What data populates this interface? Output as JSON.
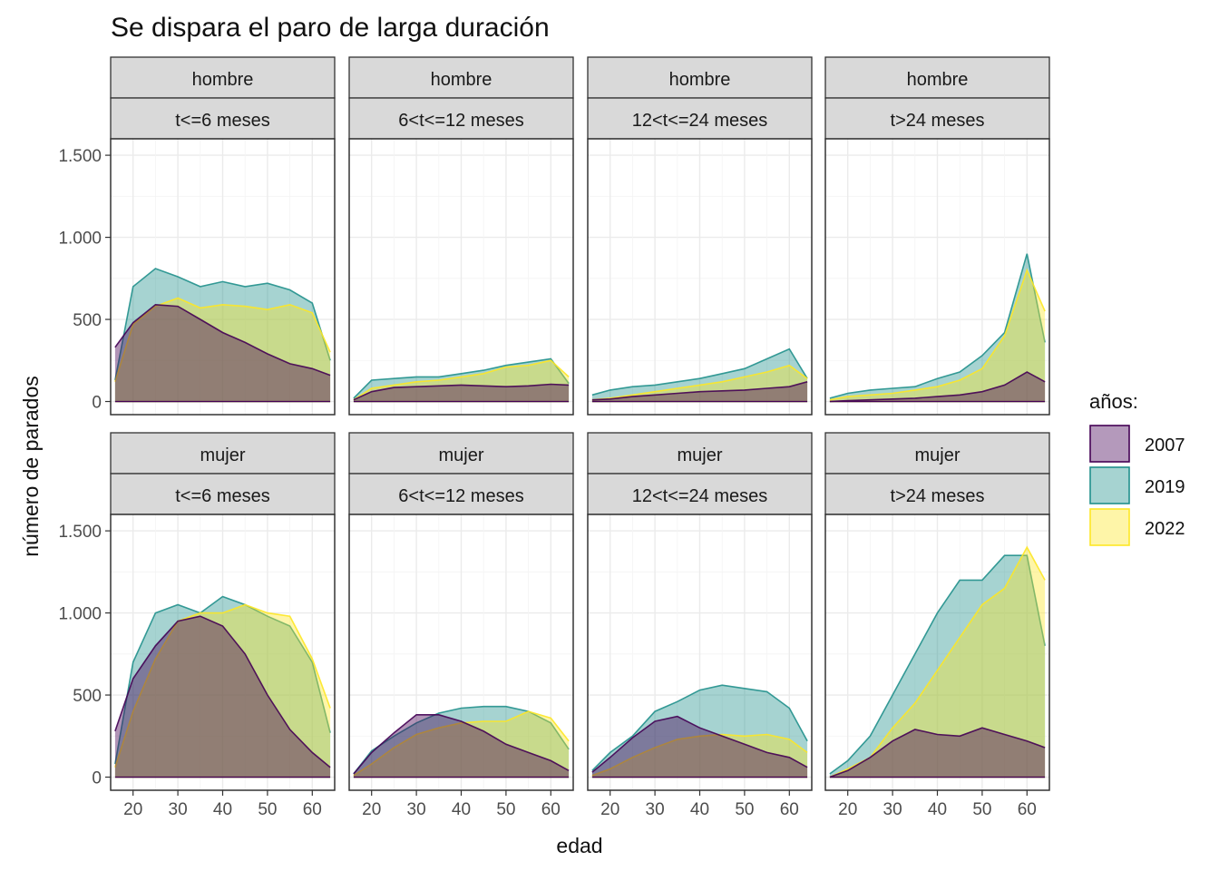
{
  "chart_data": {
    "type": "area",
    "title": "Se dispara el paro de larga duración",
    "xlabel": "edad",
    "ylabel": "número de parados",
    "xlim": [
      15,
      65
    ],
    "ylim": [
      0,
      1500
    ],
    "x_ticks": [
      20,
      30,
      40,
      50,
      60
    ],
    "y_ticks": [
      0,
      500,
      1000,
      1500
    ],
    "y_tick_labels": [
      "0",
      "500",
      "1.000",
      "1.500"
    ],
    "grid": true,
    "legend": {
      "title": "años:",
      "placement": "right",
      "entries": [
        {
          "label": "2007",
          "fill": "#440154",
          "line": "#440154"
        },
        {
          "label": "2019",
          "fill": "#21908C",
          "line": "#21908C"
        },
        {
          "label": "2022",
          "fill": "#FDE725",
          "line": "#FDE725"
        }
      ]
    },
    "rows": [
      "hombre",
      "mujer"
    ],
    "cols": [
      "t<=6 meses",
      "6<t<=12 meses",
      "12<t<=24 meses",
      "t>24 meses"
    ],
    "x": [
      16,
      20,
      25,
      30,
      35,
      40,
      45,
      50,
      55,
      60,
      64
    ],
    "panels": [
      {
        "row": "hombre",
        "col": "t<=6 meses",
        "series": [
          {
            "name": "2007",
            "values": [
              330,
              480,
              590,
              580,
              500,
              420,
              360,
              290,
              230,
              200,
              160
            ]
          },
          {
            "name": "2019",
            "values": [
              130,
              700,
              810,
              760,
              700,
              730,
              700,
              720,
              680,
              600,
              250
            ]
          },
          {
            "name": "2022",
            "values": [
              120,
              470,
              580,
              630,
              570,
              590,
              580,
              560,
              590,
              540,
              300
            ]
          }
        ]
      },
      {
        "row": "hombre",
        "col": "6<t<=12 meses",
        "series": [
          {
            "name": "2007",
            "values": [
              10,
              60,
              85,
              90,
              95,
              100,
              95,
              90,
              95,
              105,
              100
            ]
          },
          {
            "name": "2019",
            "values": [
              20,
              130,
              140,
              150,
              150,
              170,
              190,
              220,
              240,
              260,
              110
            ]
          },
          {
            "name": "2022",
            "values": [
              10,
              80,
              100,
              120,
              130,
              150,
              170,
              210,
              220,
              250,
              150
            ]
          }
        ]
      },
      {
        "row": "hombre",
        "col": "12<t<=24 meses",
        "series": [
          {
            "name": "2007",
            "values": [
              10,
              15,
              30,
              40,
              50,
              60,
              65,
              70,
              80,
              90,
              120
            ]
          },
          {
            "name": "2019",
            "values": [
              40,
              70,
              90,
              100,
              120,
              140,
              170,
              200,
              260,
              320,
              140
            ]
          },
          {
            "name": "2022",
            "values": [
              10,
              20,
              40,
              60,
              80,
              100,
              120,
              150,
              180,
              220,
              140
            ]
          }
        ]
      },
      {
        "row": "hombre",
        "col": "t>24 meses",
        "series": [
          {
            "name": "2007",
            "values": [
              0,
              5,
              10,
              15,
              20,
              30,
              40,
              60,
              100,
              180,
              120
            ]
          },
          {
            "name": "2019",
            "values": [
              20,
              50,
              70,
              80,
              90,
              140,
              180,
              280,
              420,
              900,
              360
            ]
          },
          {
            "name": "2022",
            "values": [
              10,
              30,
              40,
              50,
              70,
              90,
              130,
              200,
              400,
              800,
              550
            ]
          }
        ]
      },
      {
        "row": "mujer",
        "col": "t<=6 meses",
        "series": [
          {
            "name": "2007",
            "values": [
              280,
              600,
              800,
              950,
              980,
              920,
              750,
              500,
              290,
              150,
              60
            ]
          },
          {
            "name": "2019",
            "values": [
              80,
              700,
              1000,
              1050,
              1000,
              1100,
              1050,
              980,
              920,
              700,
              270
            ]
          },
          {
            "name": "2022",
            "values": [
              60,
              400,
              720,
              950,
              1000,
              1000,
              1050,
              1000,
              980,
              720,
              420
            ]
          }
        ]
      },
      {
        "row": "mujer",
        "col": "6<t<=12 meses",
        "series": [
          {
            "name": "2007",
            "values": [
              20,
              150,
              270,
              380,
              380,
              340,
              280,
              200,
              150,
              100,
              40
            ]
          },
          {
            "name": "2019",
            "values": [
              20,
              160,
              250,
              330,
              390,
              420,
              430,
              430,
              400,
              330,
              170
            ]
          },
          {
            "name": "2022",
            "values": [
              10,
              80,
              180,
              260,
              300,
              330,
              340,
              340,
              400,
              360,
              220
            ]
          }
        ]
      },
      {
        "row": "mujer",
        "col": "12<t<=24 meses",
        "series": [
          {
            "name": "2007",
            "values": [
              30,
              120,
              240,
              340,
              370,
              300,
              250,
              200,
              150,
              120,
              60
            ]
          },
          {
            "name": "2019",
            "values": [
              40,
              150,
              250,
              400,
              460,
              530,
              560,
              540,
              520,
              420,
              220
            ]
          },
          {
            "name": "2022",
            "values": [
              10,
              50,
              120,
              180,
              230,
              250,
              260,
              250,
              260,
              230,
              150
            ]
          }
        ]
      },
      {
        "row": "mujer",
        "col": "t>24 meses",
        "series": [
          {
            "name": "2007",
            "values": [
              0,
              40,
              120,
              220,
              290,
              260,
              250,
              300,
              260,
              220,
              180
            ]
          },
          {
            "name": "2019",
            "values": [
              20,
              100,
              250,
              500,
              750,
              1000,
              1200,
              1200,
              1350,
              1350,
              800
            ]
          },
          {
            "name": "2022",
            "values": [
              0,
              50,
              120,
              300,
              450,
              650,
              850,
              1050,
              1150,
              1400,
              1200
            ]
          }
        ]
      }
    ]
  }
}
